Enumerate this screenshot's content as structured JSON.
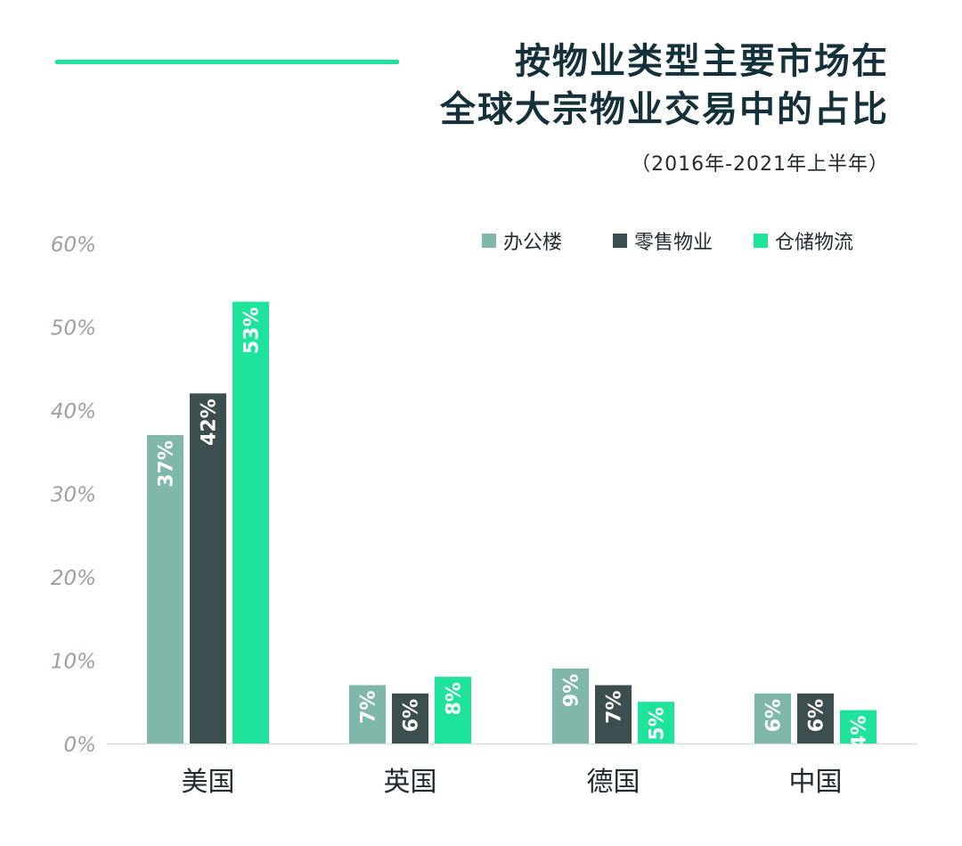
{
  "chart_data": {
    "type": "bar",
    "title_line1": "按物业类型主要市场在",
    "title_line2": "全球大宗物业交易中的占比",
    "subtitle": "（2016年-2021年上半年）",
    "categories": [
      "美国",
      "英国",
      "德国",
      "中国"
    ],
    "series": [
      {
        "name": "办公楼",
        "color": "#7fb8aa",
        "values": [
          37,
          7,
          9,
          6
        ]
      },
      {
        "name": "零售物业",
        "color": "#3d4e50",
        "values": [
          42,
          6,
          7,
          6
        ]
      },
      {
        "name": "仓储物流",
        "color": "#1ee39b",
        "values": [
          53,
          8,
          5,
          4
        ]
      }
    ],
    "ylim": [
      0,
      60
    ],
    "yticks": [
      0,
      10,
      20,
      30,
      40,
      50,
      60
    ],
    "ytick_labels": [
      "0%",
      "10%",
      "20%",
      "30%",
      "40%",
      "50%",
      "60%"
    ],
    "xlabel": "",
    "ylabel": "",
    "legend_position": "top-right",
    "grid": false
  }
}
